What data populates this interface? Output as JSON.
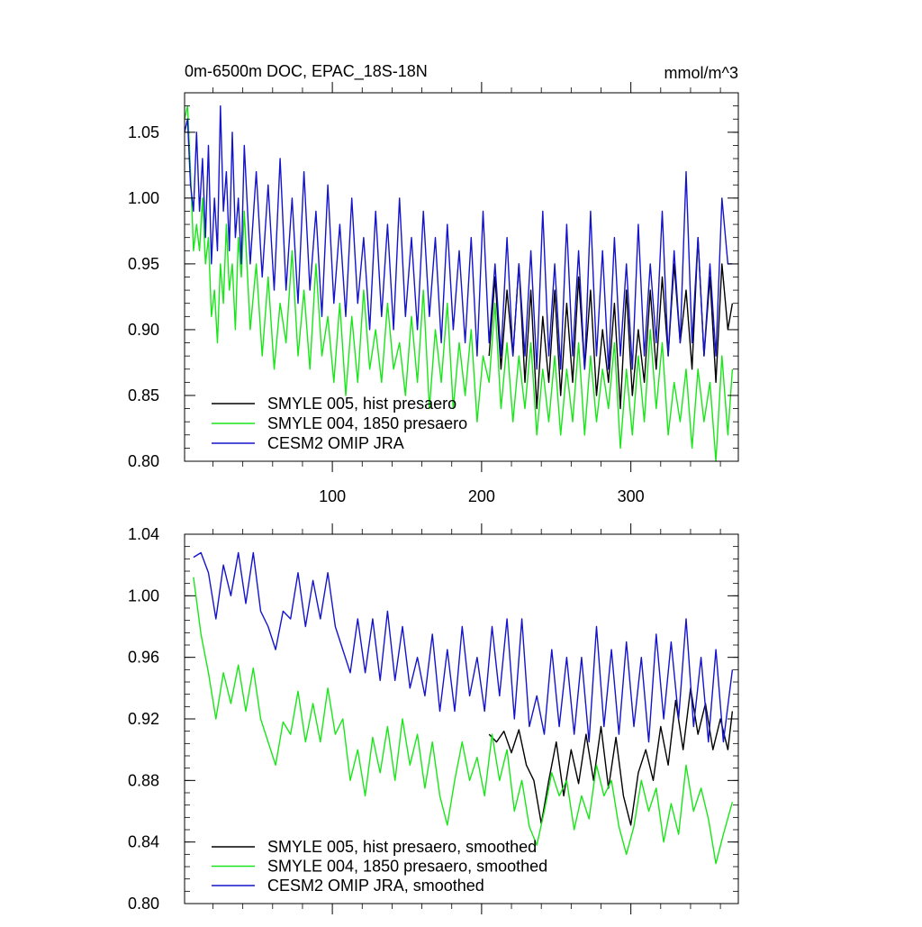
{
  "colors": {
    "hist": "#000000",
    "p1850": "#19e619",
    "omip": "#1414cc",
    "axis": "#000000"
  },
  "chart_data": [
    {
      "type": "line",
      "title": "0m-6500m DOC, EPAC_18S-18N",
      "units": "mmol/m^3",
      "xlim": [
        1,
        372
      ],
      "ylim": [
        0.8,
        1.08
      ],
      "yticks": [
        0.8,
        0.85,
        0.9,
        0.95,
        1.0,
        1.05
      ],
      "yticklabels": [
        "0.80",
        "0.85",
        "0.90",
        "0.95",
        "1.00",
        "1.05"
      ],
      "xticks": [
        100,
        200,
        300
      ],
      "xticklabels": [
        "100",
        "200",
        "300"
      ],
      "legend_position": "bottom-left",
      "series": [
        {
          "name": "SMYLE 005, hist presaero",
          "color": "#000000",
          "note_start_month": 205,
          "x": [
            205,
            209,
            213,
            217,
            221,
            225,
            229,
            233,
            237,
            241,
            245,
            249,
            253,
            257,
            261,
            265,
            269,
            273,
            277,
            281,
            285,
            289,
            293,
            297,
            301,
            305,
            309,
            313,
            317,
            321,
            325,
            329,
            333,
            337,
            341,
            345,
            349,
            353,
            357,
            361,
            365,
            368
          ],
          "values": [
            0.88,
            0.94,
            0.87,
            0.93,
            0.88,
            0.95,
            0.86,
            0.93,
            0.84,
            0.91,
            0.86,
            0.93,
            0.85,
            0.92,
            0.86,
            0.94,
            0.87,
            0.93,
            0.85,
            0.9,
            0.86,
            0.92,
            0.84,
            0.93,
            0.85,
            0.9,
            0.86,
            0.93,
            0.87,
            0.94,
            0.88,
            0.95,
            0.89,
            0.93,
            0.87,
            0.97,
            0.88,
            0.94,
            0.86,
            0.95,
            0.9,
            0.92
          ]
        },
        {
          "name": "SMYLE 004, 1850 presaero",
          "color": "#19e619",
          "x": [
            1,
            3,
            5,
            7,
            9,
            11,
            13,
            15,
            17,
            19,
            21,
            23,
            25,
            27,
            29,
            31,
            33,
            35,
            37,
            39,
            41,
            45,
            49,
            53,
            57,
            61,
            65,
            69,
            73,
            77,
            81,
            85,
            89,
            93,
            97,
            101,
            105,
            109,
            113,
            117,
            121,
            125,
            129,
            133,
            137,
            141,
            145,
            149,
            153,
            157,
            161,
            165,
            169,
            173,
            177,
            181,
            185,
            189,
            193,
            197,
            201,
            205,
            209,
            213,
            217,
            221,
            225,
            229,
            233,
            237,
            241,
            245,
            249,
            253,
            257,
            261,
            265,
            269,
            273,
            277,
            281,
            285,
            289,
            293,
            297,
            301,
            305,
            309,
            313,
            317,
            321,
            325,
            329,
            333,
            337,
            341,
            345,
            349,
            353,
            357,
            361,
            365,
            368
          ],
          "values": [
            1.06,
            1.07,
            1.02,
            0.96,
            0.98,
            0.96,
            1.0,
            0.95,
            0.97,
            0.91,
            0.93,
            0.89,
            0.95,
            0.92,
            0.98,
            0.93,
            0.95,
            0.9,
            0.97,
            0.94,
            0.99,
            0.9,
            0.95,
            0.88,
            0.94,
            0.87,
            0.92,
            0.89,
            0.96,
            0.88,
            0.93,
            0.87,
            0.95,
            0.88,
            0.91,
            0.86,
            0.92,
            0.85,
            0.91,
            0.86,
            0.93,
            0.87,
            0.9,
            0.86,
            0.92,
            0.87,
            0.89,
            0.85,
            0.91,
            0.86,
            0.93,
            0.84,
            0.9,
            0.86,
            0.92,
            0.84,
            0.89,
            0.85,
            0.9,
            0.83,
            0.88,
            0.86,
            0.92,
            0.84,
            0.89,
            0.83,
            0.88,
            0.84,
            0.89,
            0.82,
            0.87,
            0.83,
            0.88,
            0.82,
            0.87,
            0.83,
            0.89,
            0.82,
            0.88,
            0.83,
            0.87,
            0.84,
            0.89,
            0.81,
            0.87,
            0.82,
            0.88,
            0.83,
            0.9,
            0.84,
            0.89,
            0.82,
            0.86,
            0.83,
            0.87,
            0.81,
            0.87,
            0.83,
            0.86,
            0.8,
            0.88,
            0.82,
            0.87
          ]
        },
        {
          "name": "CESM2 OMIP JRA",
          "color": "#1414cc",
          "x": [
            1,
            3,
            5,
            7,
            9,
            11,
            13,
            15,
            17,
            19,
            21,
            23,
            25,
            27,
            29,
            31,
            33,
            35,
            37,
            39,
            41,
            45,
            49,
            53,
            57,
            61,
            65,
            69,
            73,
            77,
            81,
            85,
            89,
            93,
            97,
            101,
            105,
            109,
            113,
            117,
            121,
            125,
            129,
            133,
            137,
            141,
            145,
            149,
            153,
            157,
            161,
            165,
            169,
            173,
            177,
            181,
            185,
            189,
            193,
            197,
            201,
            205,
            209,
            213,
            217,
            221,
            225,
            229,
            233,
            237,
            241,
            245,
            249,
            253,
            257,
            261,
            265,
            269,
            273,
            277,
            281,
            285,
            289,
            293,
            297,
            301,
            305,
            309,
            313,
            317,
            321,
            325,
            329,
            333,
            337,
            341,
            345,
            349,
            353,
            357,
            361,
            365,
            368
          ],
          "values": [
            1.05,
            1.06,
            1.01,
            0.99,
            1.05,
            0.99,
            1.03,
            0.97,
            1.04,
            0.95,
            1.0,
            0.96,
            1.07,
            0.99,
            1.02,
            0.96,
            1.05,
            0.97,
            1.0,
            0.95,
            1.04,
            0.95,
            1.02,
            0.94,
            1.01,
            0.93,
            1.03,
            0.93,
            1.0,
            0.92,
            1.02,
            0.93,
            0.99,
            0.91,
            1.01,
            0.92,
            0.98,
            0.91,
            1.0,
            0.92,
            0.97,
            0.9,
            0.99,
            0.91,
            0.98,
            0.9,
            1.0,
            0.91,
            0.97,
            0.9,
            0.99,
            0.91,
            0.97,
            0.89,
            0.98,
            0.9,
            0.96,
            0.89,
            0.97,
            0.88,
            0.99,
            0.89,
            0.95,
            0.88,
            0.97,
            0.88,
            0.95,
            0.88,
            0.96,
            0.87,
            0.99,
            0.88,
            0.95,
            0.87,
            0.98,
            0.88,
            0.96,
            0.87,
            0.99,
            0.88,
            0.96,
            0.87,
            0.97,
            0.88,
            0.95,
            0.87,
            0.98,
            0.88,
            0.95,
            0.89,
            0.99,
            0.88,
            0.96,
            0.89,
            1.02,
            0.89,
            0.97,
            0.88,
            0.95,
            0.88,
            1.0,
            0.95,
            0.95
          ]
        }
      ]
    },
    {
      "type": "line",
      "title": "",
      "units": "",
      "xlim": [
        1,
        372
      ],
      "ylim": [
        0.8,
        1.04
      ],
      "yticks": [
        0.8,
        0.84,
        0.88,
        0.92,
        0.96,
        1.0,
        1.04
      ],
      "yticklabels": [
        "0.80",
        "0.84",
        "0.88",
        "0.92",
        "0.96",
        "1.00",
        "1.04"
      ],
      "xticks": [
        100,
        200,
        300
      ],
      "xticklabels": [],
      "legend_position": "bottom-left",
      "series": [
        {
          "name": "SMYLE 005, hist presaero, smoothed",
          "color": "#000000",
          "x": [
            205,
            210,
            215,
            220,
            225,
            230,
            235,
            240,
            245,
            250,
            255,
            260,
            265,
            270,
            275,
            280,
            285,
            290,
            295,
            300,
            305,
            310,
            315,
            320,
            325,
            330,
            335,
            340,
            345,
            350,
            355,
            360,
            365,
            368
          ],
          "values": [
            0.91,
            0.905,
            0.912,
            0.898,
            0.913,
            0.89,
            0.88,
            0.852,
            0.88,
            0.905,
            0.87,
            0.9,
            0.878,
            0.91,
            0.88,
            0.915,
            0.875,
            0.908,
            0.87,
            0.851,
            0.885,
            0.9,
            0.88,
            0.915,
            0.89,
            0.932,
            0.9,
            0.94,
            0.91,
            0.93,
            0.9,
            0.92,
            0.9,
            0.925
          ]
        },
        {
          "name": "SMYLE 004, 1850 presaero, smoothed",
          "color": "#19e619",
          "x": [
            7,
            12,
            17,
            22,
            27,
            32,
            37,
            42,
            47,
            52,
            57,
            62,
            67,
            72,
            77,
            82,
            87,
            92,
            97,
            102,
            107,
            112,
            117,
            122,
            127,
            132,
            137,
            142,
            147,
            152,
            157,
            162,
            167,
            172,
            177,
            182,
            187,
            192,
            197,
            202,
            207,
            212,
            217,
            222,
            227,
            232,
            237,
            242,
            247,
            252,
            257,
            262,
            267,
            272,
            277,
            282,
            287,
            292,
            297,
            302,
            307,
            312,
            317,
            322,
            327,
            332,
            337,
            342,
            347,
            352,
            357,
            362,
            368
          ],
          "values": [
            1.012,
            0.975,
            0.95,
            0.92,
            0.95,
            0.93,
            0.955,
            0.925,
            0.953,
            0.92,
            0.905,
            0.89,
            0.918,
            0.91,
            0.938,
            0.905,
            0.93,
            0.905,
            0.94,
            0.91,
            0.92,
            0.88,
            0.9,
            0.87,
            0.908,
            0.885,
            0.915,
            0.88,
            0.92,
            0.89,
            0.91,
            0.875,
            0.905,
            0.87,
            0.851,
            0.88,
            0.905,
            0.88,
            0.895,
            0.87,
            0.91,
            0.88,
            0.9,
            0.86,
            0.88,
            0.85,
            0.838,
            0.86,
            0.885,
            0.87,
            0.88,
            0.848,
            0.87,
            0.855,
            0.89,
            0.87,
            0.88,
            0.85,
            0.832,
            0.85,
            0.88,
            0.86,
            0.875,
            0.84,
            0.865,
            0.845,
            0.89,
            0.86,
            0.875,
            0.855,
            0.826,
            0.845,
            0.866
          ]
        },
        {
          "name": "CESM2 OMIP JRA, smoothed",
          "color": "#1414cc",
          "x": [
            7,
            12,
            17,
            22,
            27,
            32,
            37,
            42,
            47,
            52,
            57,
            62,
            67,
            72,
            77,
            82,
            87,
            92,
            97,
            102,
            107,
            112,
            117,
            122,
            127,
            132,
            137,
            142,
            147,
            152,
            157,
            162,
            167,
            172,
            177,
            182,
            187,
            192,
            197,
            202,
            207,
            212,
            217,
            222,
            227,
            232,
            237,
            242,
            247,
            252,
            257,
            262,
            267,
            272,
            277,
            282,
            287,
            292,
            297,
            302,
            307,
            312,
            317,
            322,
            327,
            332,
            337,
            342,
            347,
            352,
            357,
            362,
            368
          ],
          "values": [
            1.025,
            1.028,
            1.015,
            0.985,
            1.02,
            1.0,
            1.028,
            0.995,
            1.028,
            0.99,
            0.98,
            0.965,
            0.99,
            0.985,
            1.015,
            0.98,
            1.01,
            0.985,
            1.015,
            0.98,
            0.965,
            0.95,
            0.985,
            0.95,
            0.985,
            0.945,
            0.99,
            0.945,
            0.98,
            0.94,
            0.96,
            0.935,
            0.975,
            0.925,
            0.965,
            0.925,
            0.98,
            0.935,
            0.96,
            0.925,
            0.98,
            0.935,
            0.985,
            0.92,
            0.985,
            0.915,
            0.935,
            0.91,
            0.965,
            0.915,
            0.96,
            0.91,
            0.96,
            0.905,
            0.98,
            0.915,
            0.965,
            0.91,
            0.97,
            0.915,
            0.96,
            0.905,
            0.975,
            0.92,
            0.97,
            0.92,
            0.985,
            0.915,
            0.96,
            0.905,
            0.965,
            0.905,
            0.952
          ]
        }
      ]
    }
  ]
}
